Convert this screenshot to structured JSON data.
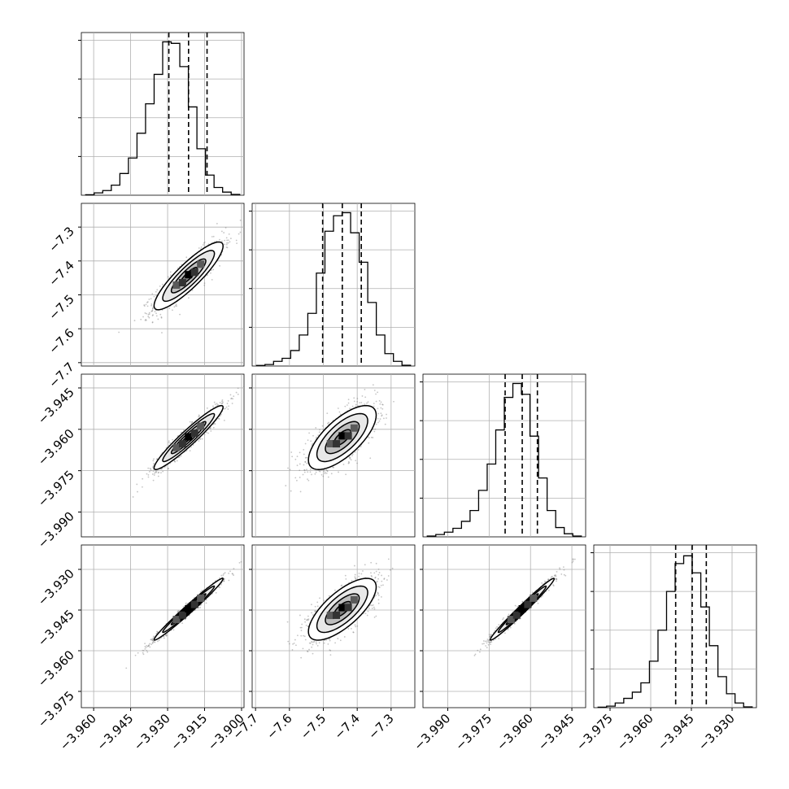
{
  "chart_data": {
    "type": "corner",
    "parameters": [
      {
        "range": [
          -3.965,
          -3.899
        ],
        "quantiles": [
          -3.9295,
          -3.9215,
          -3.914
        ],
        "ticks": [
          -3.96,
          -3.945,
          -3.93,
          -3.915,
          -3.9
        ],
        "tick_labels": [
          "−3.960",
          "−3.945",
          "−3.930",
          "−3.915",
          "−3.900"
        ],
        "hist_heights": [
          0.003,
          0.015,
          0.03,
          0.065,
          0.14,
          0.24,
          0.4,
          0.59,
          0.78,
          0.99,
          0.98,
          0.83,
          0.57,
          0.3,
          0.13,
          0.05,
          0.02,
          0.005
        ]
      },
      {
        "range": [
          -7.71,
          -7.23
        ],
        "quantiles": [
          -7.502,
          -7.444,
          -7.388
        ],
        "ticks": [
          -7.7,
          -7.6,
          -7.5,
          -7.4,
          -7.3
        ],
        "tick_labels": [
          "−7.7",
          "−7.6",
          "−7.5",
          "−7.4",
          "−7.3"
        ],
        "hist_heights": [
          0.004,
          0.01,
          0.03,
          0.05,
          0.1,
          0.2,
          0.34,
          0.6,
          0.87,
          0.97,
          0.99,
          0.86,
          0.67,
          0.41,
          0.2,
          0.08,
          0.03,
          0.005
        ]
      },
      {
        "range": [
          -3.999,
          -3.94
        ],
        "quantiles": [
          -3.9692,
          -3.963,
          -3.9575
        ],
        "ticks": [
          -3.99,
          -3.975,
          -3.96,
          -3.945
        ],
        "tick_labels": [
          "−3.990",
          "−3.975",
          "−3.960",
          "−3.945"
        ],
        "hist_heights": [
          0.005,
          0.015,
          0.03,
          0.055,
          0.1,
          0.17,
          0.3,
          0.47,
          0.69,
          0.9,
          0.99,
          0.92,
          0.65,
          0.38,
          0.17,
          0.06,
          0.02,
          0.005
        ]
      },
      {
        "range": [
          -3.981,
          -3.921
        ],
        "quantiles": [
          -3.9508,
          -3.9447,
          -3.9395
        ],
        "ticks": [
          -3.975,
          -3.96,
          -3.945,
          -3.93
        ],
        "tick_labels": [
          "−3.975",
          "−3.960",
          "−3.945",
          "−3.930"
        ],
        "hist_heights": [
          0.003,
          0.01,
          0.03,
          0.06,
          0.1,
          0.16,
          0.3,
          0.5,
          0.75,
          0.93,
          0.98,
          0.87,
          0.65,
          0.4,
          0.2,
          0.09,
          0.03,
          0.005
        ]
      }
    ],
    "pairs": [
      {
        "row": 1,
        "col": 0,
        "mean": [
          -3.9215,
          -7.444
        ],
        "sd": [
          0.007,
          0.05
        ],
        "rho": 0.88
      },
      {
        "row": 2,
        "col": 0,
        "mean": [
          -3.9215,
          -3.963
        ],
        "sd": [
          0.007,
          0.0058
        ],
        "rho": 0.95
      },
      {
        "row": 2,
        "col": 1,
        "mean": [
          -7.444,
          -3.963
        ],
        "sd": [
          0.05,
          0.0058
        ],
        "rho": 0.7
      },
      {
        "row": 3,
        "col": 0,
        "mean": [
          -3.9215,
          -3.9447
        ],
        "sd": [
          0.007,
          0.0057
        ],
        "rho": 0.985
      },
      {
        "row": 3,
        "col": 1,
        "mean": [
          -7.444,
          -3.9447
        ],
        "sd": [
          0.05,
          0.0057
        ],
        "rho": 0.72
      },
      {
        "row": 3,
        "col": 2,
        "mean": [
          -3.963,
          -3.9447
        ],
        "sd": [
          0.0058,
          0.0057
        ],
        "rho": 0.985
      }
    ],
    "contour_levels_sigma": [
      0.5,
      1.0,
      1.5,
      2.0
    ],
    "grid": true,
    "colors": {
      "contour": "#000000",
      "points": "#7f7f7f",
      "quantile_line": "#000000",
      "histogram": "#000000"
    }
  }
}
